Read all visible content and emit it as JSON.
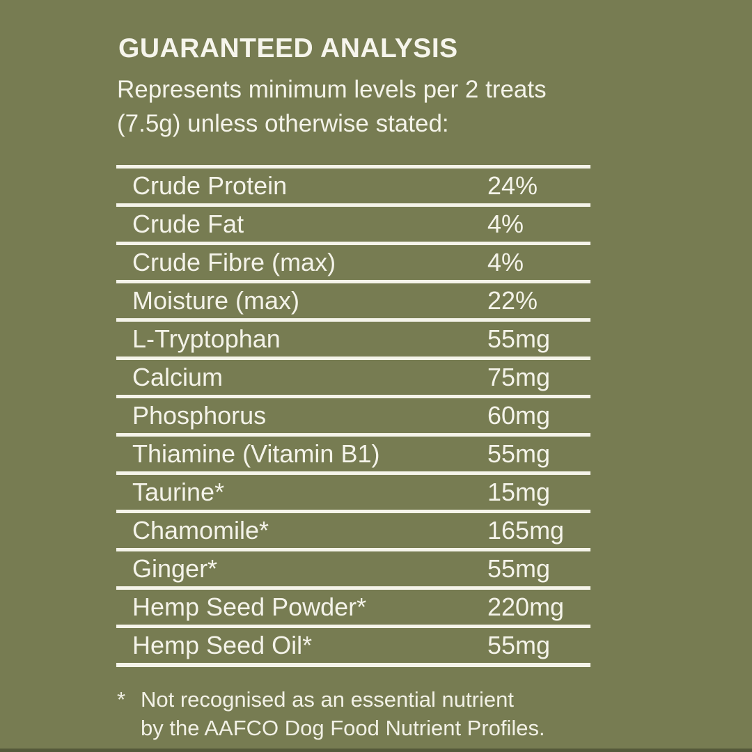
{
  "page": {
    "background_color": "#777c52",
    "text_color": "#f4f3e9",
    "rule_color": "#f5f4ea"
  },
  "header": {
    "title": "GUARANTEED ANALYSIS",
    "subtitle_line1": "Represents minimum levels per 2 treats",
    "subtitle_line2": "(7.5g) unless otherwise stated:"
  },
  "table": {
    "rows": [
      {
        "label": "Crude Protein",
        "value": "24%"
      },
      {
        "label": "Crude Fat",
        "value": "4%"
      },
      {
        "label": "Crude Fibre (max)",
        "value": "4%"
      },
      {
        "label": "Moisture (max)",
        "value": "22%"
      },
      {
        "label": "L-Tryptophan",
        "value": "55mg"
      },
      {
        "label": "Calcium",
        "value": "75mg"
      },
      {
        "label": "Phosphorus",
        "value": "60mg"
      },
      {
        "label": "Thiamine (Vitamin B1)",
        "value": "55mg"
      },
      {
        "label": "Taurine*",
        "value": "15mg"
      },
      {
        "label": "Chamomile*",
        "value": "165mg"
      },
      {
        "label": "Ginger*",
        "value": "55mg"
      },
      {
        "label": "Hemp Seed Powder*",
        "value": "220mg"
      },
      {
        "label": "Hemp Seed Oil*",
        "value": "55mg"
      }
    ]
  },
  "footnote": {
    "marker": "*",
    "line1": "Not recognised as an essential nutrient",
    "line2": "by the AAFCO Dog Food Nutrient Profiles."
  }
}
